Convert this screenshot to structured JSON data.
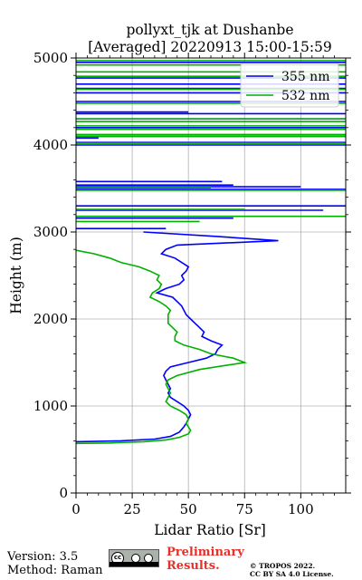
{
  "footer": {
    "version": "Version: 3.5",
    "method": "Method: Raman",
    "preliminary_line1": "Preliminary",
    "preliminary_line2": "Results.",
    "copyright_line1": "© TROPOS 2022.",
    "copyright_line2": "CC BY SA 4.0 License.",
    "license_badge_icon": "cc-by-sa-icon"
  },
  "chart_data": {
    "type": "line",
    "title": "pollyxt_tjk at Dushanbe",
    "subtitle": "[Averaged] 20220913 15:00-15:59",
    "xlabel": "Lidar Ratio [Sr]",
    "ylabel": "Height (m)",
    "xlim": [
      0,
      120
    ],
    "ylim": [
      0,
      5000
    ],
    "xticks": [
      0,
      25,
      50,
      75,
      100
    ],
    "yticks": [
      0,
      1000,
      2000,
      3000,
      4000,
      5000
    ],
    "grid": true,
    "legend_position": "top-right",
    "series": [
      {
        "name": "355 nm",
        "color": "#0000ff",
        "points": [
          [
            0,
            590
          ],
          [
            20,
            600
          ],
          [
            35,
            620
          ],
          [
            42,
            650
          ],
          [
            46,
            700
          ],
          [
            48,
            760
          ],
          [
            49,
            800
          ],
          [
            50,
            850
          ],
          [
            51,
            900
          ],
          [
            50,
            950
          ],
          [
            48,
            1000
          ],
          [
            45,
            1050
          ],
          [
            42,
            1100
          ],
          [
            41,
            1150
          ],
          [
            42,
            1200
          ],
          [
            41,
            1250
          ],
          [
            40,
            1300
          ],
          [
            39,
            1350
          ],
          [
            40,
            1400
          ],
          [
            42,
            1450
          ],
          [
            50,
            1500
          ],
          [
            58,
            1550
          ],
          [
            62,
            1600
          ],
          [
            63,
            1650
          ],
          [
            65,
            1700
          ],
          [
            60,
            1750
          ],
          [
            56,
            1800
          ],
          [
            57,
            1850
          ],
          [
            55,
            1900
          ],
          [
            53,
            1950
          ],
          [
            51,
            2000
          ],
          [
            49,
            2050
          ],
          [
            48,
            2100
          ],
          [
            47,
            2150
          ],
          [
            45,
            2200
          ],
          [
            43,
            2250
          ],
          [
            36,
            2300
          ],
          [
            40,
            2350
          ],
          [
            46,
            2400
          ],
          [
            48,
            2450
          ],
          [
            47,
            2500
          ],
          [
            49,
            2550
          ],
          [
            50,
            2600
          ],
          [
            47,
            2650
          ],
          [
            44,
            2700
          ],
          [
            38,
            2750
          ],
          [
            40,
            2800
          ],
          [
            45,
            2850
          ],
          [
            90,
            2900
          ],
          [
            62,
            2950
          ],
          [
            30,
            3000
          ]
        ]
      },
      {
        "name": "532 nm",
        "color": "#00b000",
        "points": [
          [
            0,
            570
          ],
          [
            15,
            575
          ],
          [
            30,
            590
          ],
          [
            40,
            610
          ],
          [
            46,
            640
          ],
          [
            50,
            680
          ],
          [
            51,
            720
          ],
          [
            50,
            760
          ],
          [
            49,
            800
          ],
          [
            50,
            850
          ],
          [
            49,
            900
          ],
          [
            46,
            950
          ],
          [
            42,
            1000
          ],
          [
            40,
            1050
          ],
          [
            41,
            1100
          ],
          [
            42,
            1150
          ],
          [
            41,
            1200
          ],
          [
            40,
            1250
          ],
          [
            41,
            1300
          ],
          [
            45,
            1350
          ],
          [
            55,
            1420
          ],
          [
            75,
            1500
          ],
          [
            70,
            1550
          ],
          [
            60,
            1600
          ],
          [
            55,
            1650
          ],
          [
            48,
            1700
          ],
          [
            44,
            1750
          ],
          [
            44,
            1800
          ],
          [
            45,
            1850
          ],
          [
            43,
            1900
          ],
          [
            41,
            1950
          ],
          [
            41,
            2000
          ],
          [
            41,
            2050
          ],
          [
            42,
            2100
          ],
          [
            40,
            2150
          ],
          [
            37,
            2200
          ],
          [
            33,
            2250
          ],
          [
            34,
            2300
          ],
          [
            37,
            2350
          ],
          [
            38,
            2400
          ],
          [
            36,
            2450
          ],
          [
            37,
            2500
          ],
          [
            33,
            2550
          ],
          [
            28,
            2600
          ],
          [
            20,
            2650
          ],
          [
            15,
            2700
          ],
          [
            8,
            2750
          ],
          [
            0,
            2790
          ]
        ]
      }
    ],
    "high_altitude_segments": [
      {
        "series": "355 nm",
        "segments": [
          [
            0,
            3040,
            40
          ],
          [
            0,
            3160,
            70
          ],
          [
            0,
            3250,
            110
          ],
          [
            0,
            3300,
            120
          ],
          [
            0,
            3490,
            120
          ],
          [
            0,
            3520,
            100
          ],
          [
            0,
            3540,
            70
          ],
          [
            0,
            3580,
            65
          ],
          [
            0,
            4000,
            120
          ],
          [
            0,
            4030,
            120
          ],
          [
            0,
            4080,
            10
          ],
          [
            0,
            4100,
            120
          ],
          [
            0,
            4200,
            120
          ],
          [
            0,
            4300,
            120
          ],
          [
            0,
            4360,
            120
          ],
          [
            0,
            4380,
            50
          ],
          [
            0,
            4500,
            120
          ],
          [
            0,
            4600,
            120
          ],
          [
            0,
            4650,
            120
          ],
          [
            0,
            4700,
            120
          ],
          [
            0,
            4770,
            120
          ],
          [
            0,
            4950,
            120
          ]
        ]
      },
      {
        "series": "532 nm",
        "segments": [
          [
            0,
            3120,
            55
          ],
          [
            0,
            3180,
            120
          ],
          [
            0,
            3260,
            75
          ],
          [
            0,
            3480,
            120
          ],
          [
            0,
            3510,
            60
          ],
          [
            0,
            4020,
            120
          ],
          [
            0,
            4100,
            120
          ],
          [
            0,
            4120,
            120
          ],
          [
            0,
            4180,
            120
          ],
          [
            0,
            4220,
            120
          ],
          [
            0,
            4270,
            120
          ],
          [
            0,
            4300,
            120
          ],
          [
            0,
            4480,
            120
          ],
          [
            0,
            4640,
            120
          ],
          [
            0,
            4790,
            120
          ],
          [
            0,
            4840,
            120
          ],
          [
            0,
            4920,
            120
          ],
          [
            0,
            4970,
            120
          ]
        ]
      }
    ]
  }
}
